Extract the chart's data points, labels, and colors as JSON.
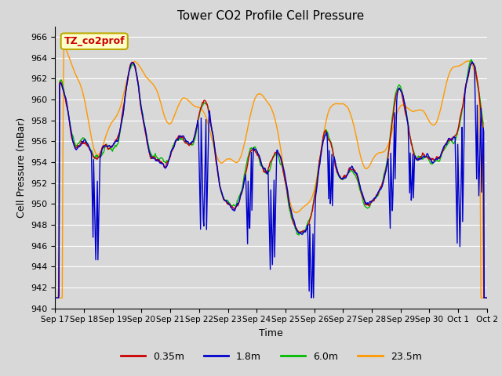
{
  "title": "Tower CO2 Profile Cell Pressure",
  "xlabel": "Time",
  "ylabel": "Cell Pressure (mBar)",
  "ylim": [
    940,
    967
  ],
  "yticks": [
    940,
    942,
    944,
    946,
    948,
    950,
    952,
    954,
    956,
    958,
    960,
    962,
    964,
    966
  ],
  "background_color": "#d8d8d8",
  "plot_bg_color": "#d8d8d8",
  "grid_color": "#ffffff",
  "lines": [
    {
      "label": "0.35m",
      "color": "#cc0000"
    },
    {
      "label": "1.8m",
      "color": "#0000cc"
    },
    {
      "label": "6.0m",
      "color": "#00bb00"
    },
    {
      "label": "23.5m",
      "color": "#ff9900"
    }
  ],
  "xtick_labels": [
    "Sep 17",
    "Sep 18",
    "Sep 19",
    "Sep 20",
    "Sep 21",
    "Sep 22",
    "Sep 23",
    "Sep 24",
    "Sep 25",
    "Sep 26",
    "Sep 27",
    "Sep 28",
    "Sep 29",
    "Sep 30",
    "Oct 1",
    "Oct 2"
  ],
  "annotation_text": "TZ_co2prof",
  "annotation_color": "#cc0000",
  "annotation_bg": "#ffffcc",
  "annotation_border": "#bbaa00"
}
